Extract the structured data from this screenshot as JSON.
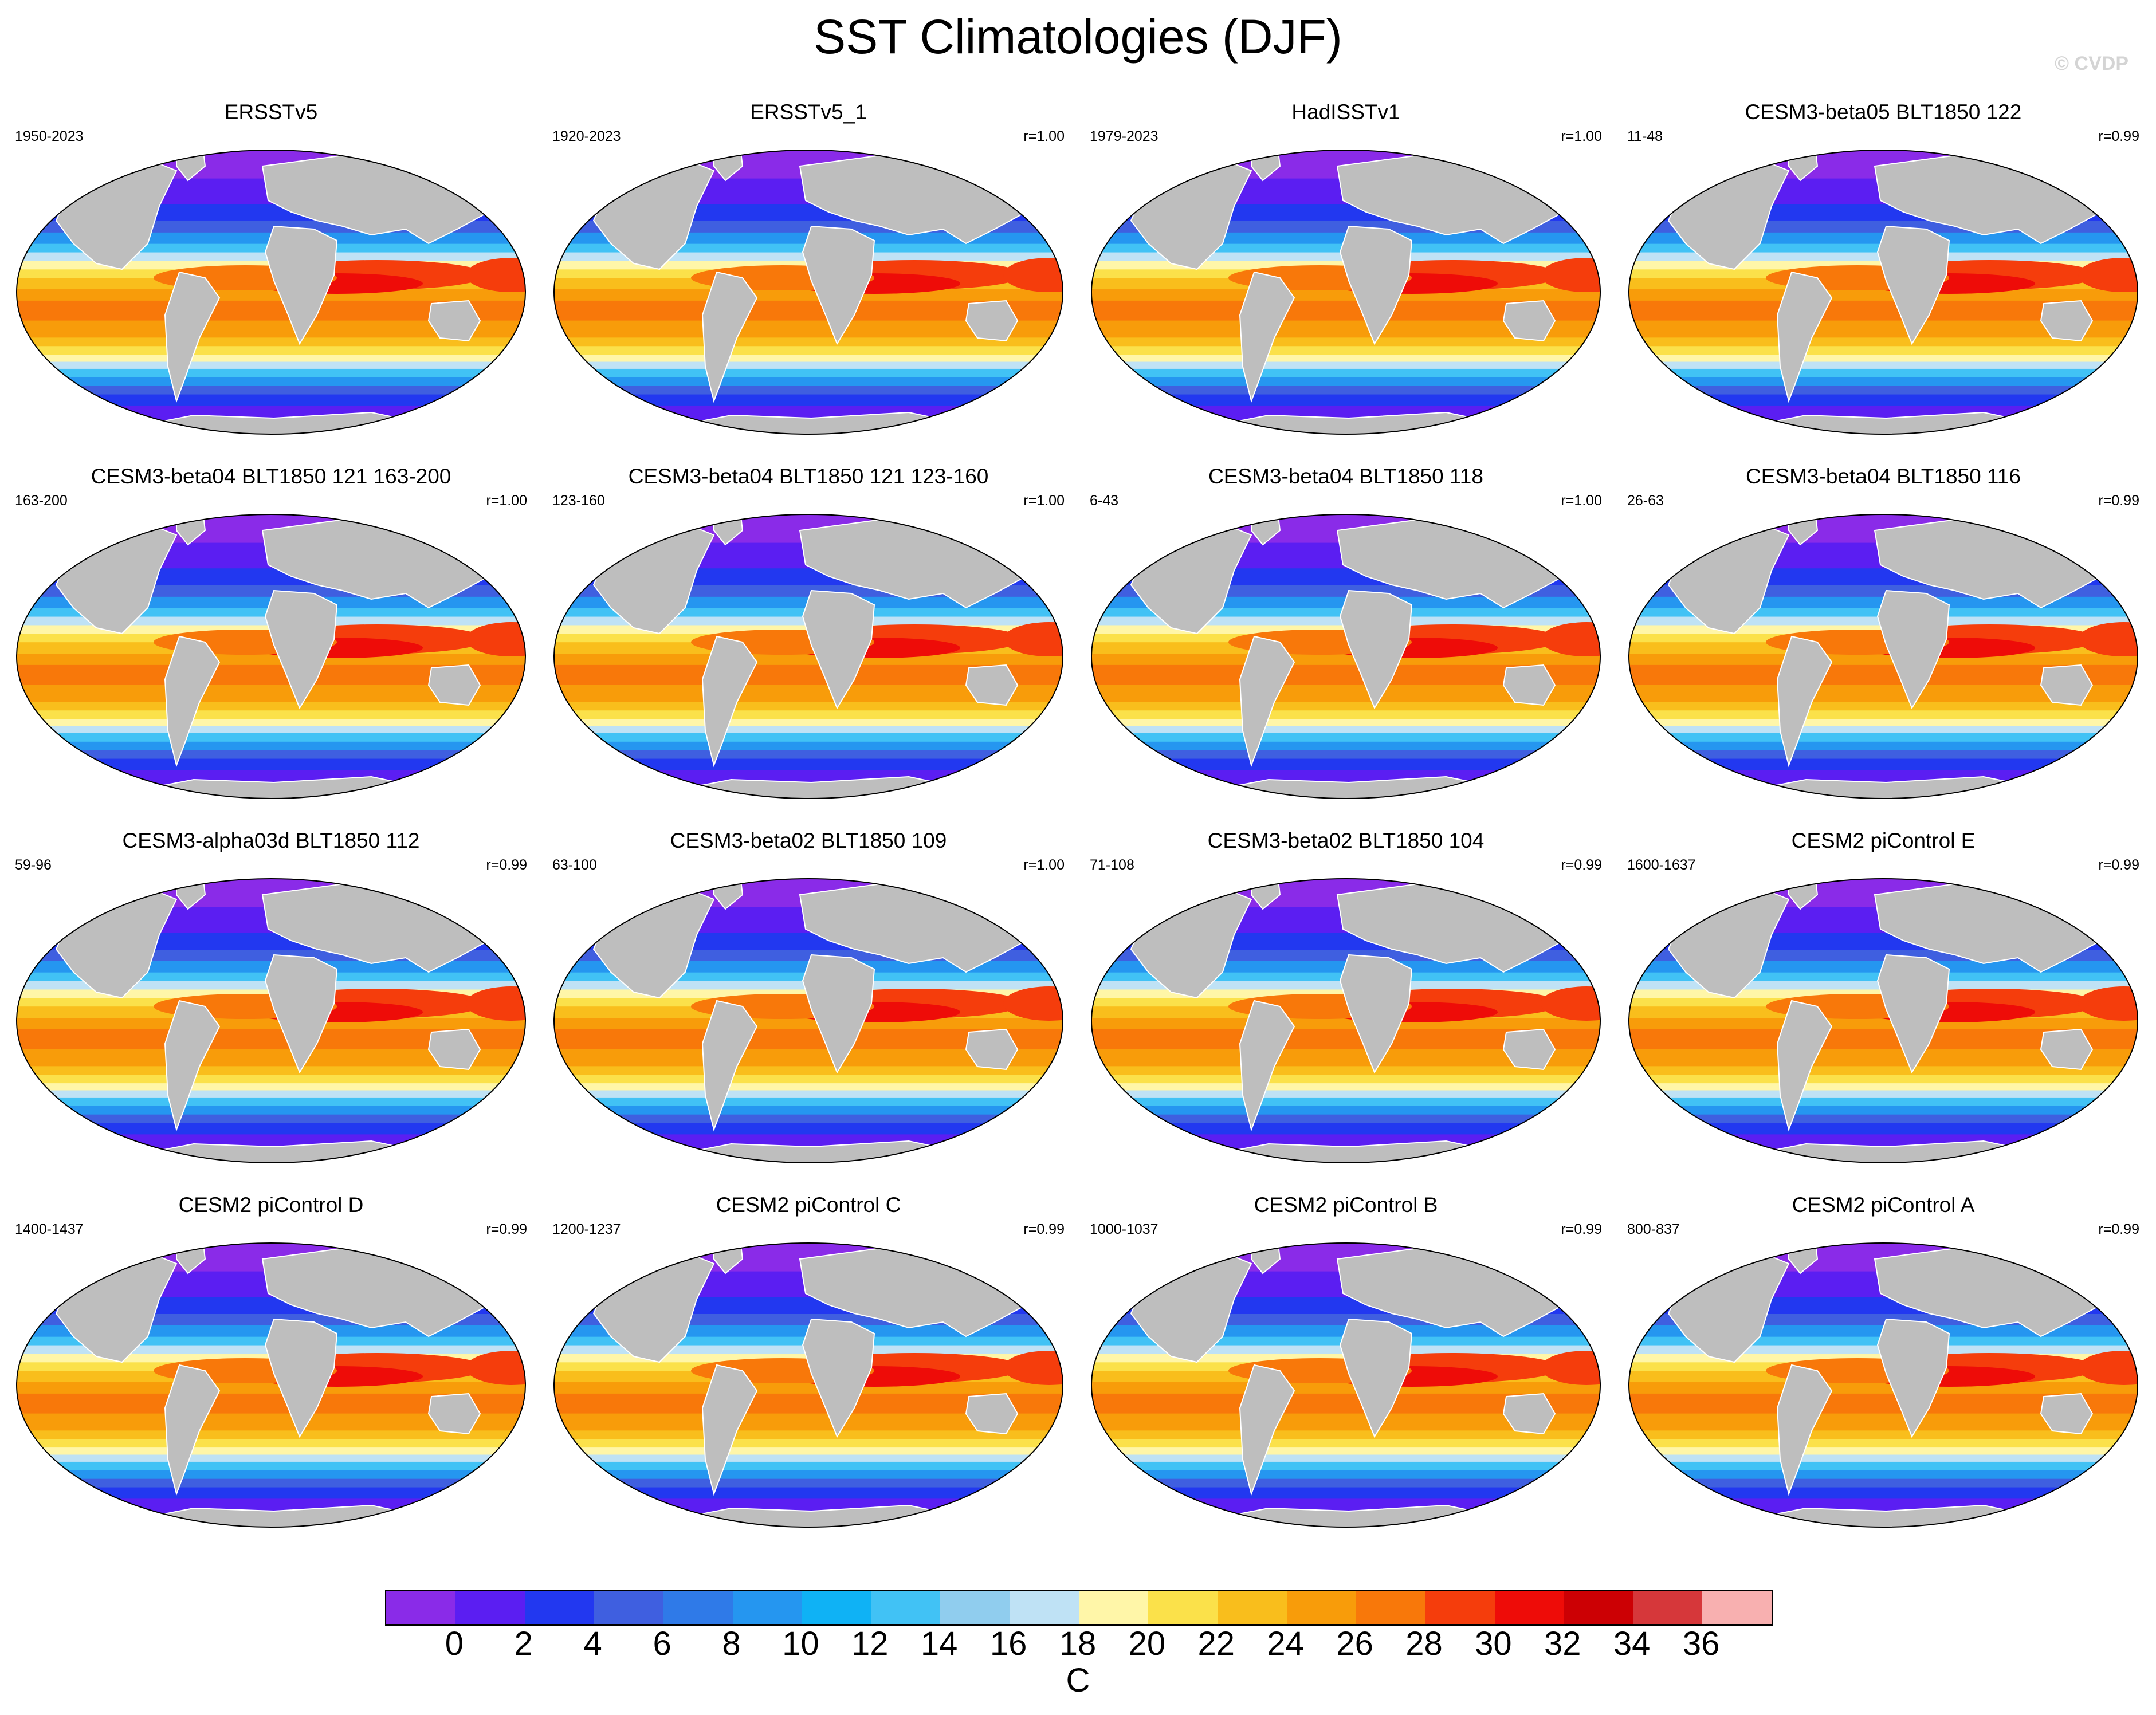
{
  "title": "SST Climatologies (DJF)",
  "watermark": "© CVDP",
  "panels": [
    {
      "title": "ERSSTv5",
      "years": "1950-2023",
      "r": ""
    },
    {
      "title": "ERSSTv5_1",
      "years": "1920-2023",
      "r": "r=1.00"
    },
    {
      "title": "HadISSTv1",
      "years": "1979-2023",
      "r": "r=1.00"
    },
    {
      "title": "CESM3-beta05 BLT1850 122",
      "years": "11-48",
      "r": "r=0.99"
    },
    {
      "title": "CESM3-beta04 BLT1850 121 163-200",
      "years": "163-200",
      "r": "r=1.00"
    },
    {
      "title": "CESM3-beta04 BLT1850 121 123-160",
      "years": "123-160",
      "r": "r=1.00"
    },
    {
      "title": "CESM3-beta04 BLT1850 118",
      "years": "6-43",
      "r": "r=1.00"
    },
    {
      "title": "CESM3-beta04 BLT1850 116",
      "years": "26-63",
      "r": "r=0.99"
    },
    {
      "title": "CESM3-alpha03d BLT1850 112",
      "years": "59-96",
      "r": "r=0.99"
    },
    {
      "title": "CESM3-beta02 BLT1850 109",
      "years": "63-100",
      "r": "r=1.00"
    },
    {
      "title": "CESM3-beta02 BLT1850 104",
      "years": "71-108",
      "r": "r=0.99"
    },
    {
      "title": "CESM2 piControl E",
      "years": "1600-1637",
      "r": "r=0.99"
    },
    {
      "title": "CESM2 piControl D",
      "years": "1400-1437",
      "r": "r=0.99"
    },
    {
      "title": "CESM2 piControl C",
      "years": "1200-1237",
      "r": "r=0.99"
    },
    {
      "title": "CESM2 piControl B",
      "years": "1000-1037",
      "r": "r=0.99"
    },
    {
      "title": "CESM2 piControl A",
      "years": "800-837",
      "r": "r=0.99"
    }
  ],
  "colorbar": {
    "unit": "C",
    "ticks": [
      "0",
      "2",
      "4",
      "6",
      "8",
      "10",
      "12",
      "14",
      "16",
      "18",
      "20",
      "22",
      "24",
      "26",
      "28",
      "30",
      "32",
      "34",
      "36"
    ],
    "colors": [
      "#8a2be8",
      "#5b1ef2",
      "#2238f0",
      "#3f5fe0",
      "#2f7ae8",
      "#2596f0",
      "#0fb2f5",
      "#41c2f5",
      "#90cdee",
      "#bfe2f5",
      "#fff6a8",
      "#fbe14a",
      "#f9be1c",
      "#f89c0a",
      "#f8780a",
      "#f53d0c",
      "#ee0c08",
      "#cc0004",
      "#d6373a",
      "#f8b0b0"
    ],
    "land_color": "#bebebe"
  }
}
